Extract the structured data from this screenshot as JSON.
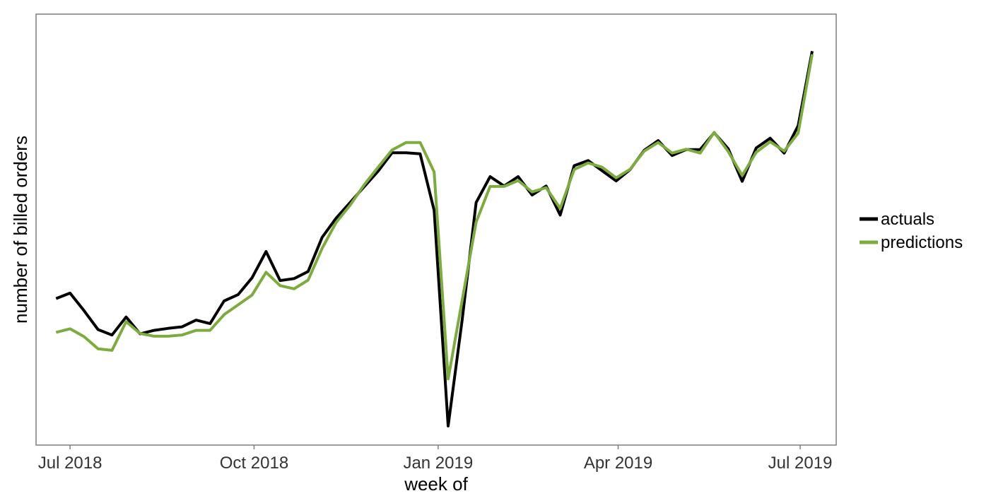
{
  "chart_data": {
    "type": "line",
    "title": "",
    "xlabel": "week of",
    "ylabel": "number of billed orders",
    "x_ticks": [
      "2018-07-01",
      "2018-10-01",
      "2019-01-01",
      "2019-04-01",
      "2019-07-01"
    ],
    "x_tick_labels": [
      "Jul 2018",
      "Oct 2018",
      "Jan 2019",
      "Apr 2019",
      "Jul 2019"
    ],
    "xlim": [
      "2018-06-14",
      "2019-07-19"
    ],
    "ylim": [
      0,
      100
    ],
    "y_tick_labels_shown": false,
    "grid": false,
    "legend_position": "right",
    "x": [
      "2018-06-24",
      "2018-07-01",
      "2018-07-08",
      "2018-07-15",
      "2018-07-22",
      "2018-07-29",
      "2018-08-05",
      "2018-08-12",
      "2018-08-19",
      "2018-08-26",
      "2018-09-02",
      "2018-09-09",
      "2018-09-16",
      "2018-09-23",
      "2018-09-30",
      "2018-10-07",
      "2018-10-14",
      "2018-10-21",
      "2018-10-28",
      "2018-11-04",
      "2018-11-11",
      "2018-11-18",
      "2018-11-25",
      "2018-12-02",
      "2018-12-09",
      "2018-12-16",
      "2018-12-23",
      "2018-12-30",
      "2019-01-06",
      "2019-01-13",
      "2019-01-20",
      "2019-01-27",
      "2019-02-03",
      "2019-02-10",
      "2019-02-17",
      "2019-02-24",
      "2019-03-03",
      "2019-03-10",
      "2019-03-17",
      "2019-03-24",
      "2019-03-31",
      "2019-04-07",
      "2019-04-14",
      "2019-04-21",
      "2019-04-28",
      "2019-05-05",
      "2019-05-12",
      "2019-05-19",
      "2019-05-26",
      "2019-06-02",
      "2019-06-09",
      "2019-06-16",
      "2019-06-23",
      "2019-06-30",
      "2019-07-07"
    ],
    "series": [
      {
        "name": "actuals",
        "color": "#000000",
        "values": [
          32.5,
          33.9,
          29.4,
          24.6,
          23.2,
          27.8,
          23.5,
          24.4,
          24.9,
          25.3,
          27.0,
          26.1,
          31.9,
          33.5,
          37.8,
          44.5,
          37.1,
          37.6,
          39.4,
          48.1,
          53.0,
          57.0,
          61.0,
          65.0,
          69.7,
          69.7,
          69.4,
          55.0,
          0.0,
          27.0,
          57.0,
          63.6,
          61.2,
          63.6,
          58.9,
          61.2,
          53.8,
          66.4,
          67.7,
          65.1,
          62.5,
          65.4,
          70.3,
          72.8,
          69.0,
          70.5,
          70.5,
          74.8,
          70.7,
          62.4,
          70.9,
          73.4,
          69.6,
          76.6,
          95.6
        ]
      },
      {
        "name": "predictions",
        "color": "#7cac3c",
        "values": [
          23.9,
          24.8,
          22.8,
          19.7,
          19.3,
          26.6,
          23.6,
          22.9,
          22.9,
          23.2,
          24.4,
          24.4,
          28.4,
          30.9,
          33.4,
          39.2,
          35.8,
          35.0,
          37.2,
          45.3,
          51.9,
          56.3,
          61.5,
          66.0,
          70.4,
          72.3,
          72.3,
          64.8,
          12.0,
          32.0,
          52.0,
          61.1,
          61.1,
          62.6,
          59.7,
          60.8,
          55.5,
          65.4,
          67.1,
          66.0,
          63.3,
          65.5,
          70.1,
          72.3,
          69.6,
          70.6,
          69.6,
          74.9,
          70.0,
          63.9,
          69.8,
          72.5,
          70.1,
          74.7,
          94.8
        ]
      }
    ]
  }
}
